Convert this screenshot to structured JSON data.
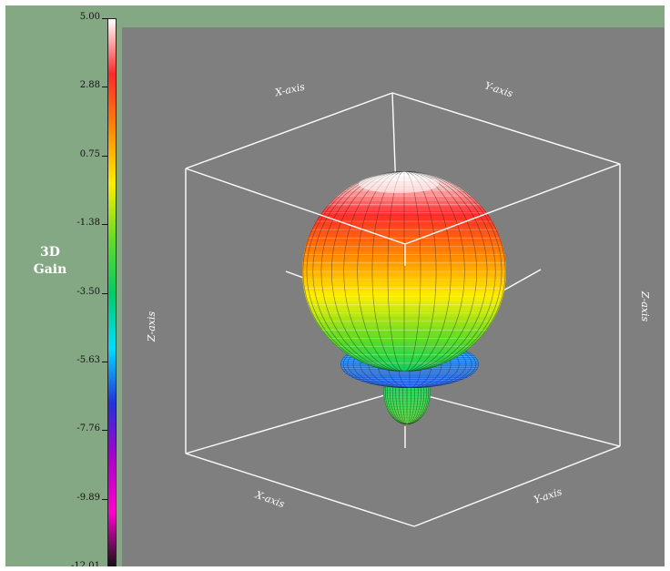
{
  "colorbar": {
    "title_line1": "3D",
    "title_line2": "Gain",
    "ticks": [
      "5.00",
      "2.88",
      "0.75",
      "-1.38",
      "-3.50",
      "-5.63",
      "-7.76",
      "-9.89",
      "-12.01"
    ],
    "colors": [
      "#ffffff",
      "#ff2a2a",
      "#ff8800",
      "#ffee00",
      "#66dd22",
      "#00cc66",
      "#00ddff",
      "#2233dd",
      "#aa00cc",
      "#ff00cc",
      "#111111"
    ]
  },
  "chart_data": {
    "type": "surface3d",
    "title": "",
    "colorbar_label": "3D Gain",
    "colorbar_range": [
      -12.01,
      5.0
    ],
    "axes": {
      "x_top": "X-axis",
      "y_top": "Y-axis",
      "z_left": "Z-axis",
      "z_right": "Z-axis",
      "x_bottom": "X-axis",
      "y_bottom": "Y-axis"
    },
    "description_values": {
      "main_lobe_peak_gain": 5.0,
      "back_lobe_min_gain": -12.01
    }
  },
  "colors": {
    "panel_bg": "#84a884",
    "plot_bg": "#7f7f7f",
    "box_edges": "#ffffff"
  }
}
